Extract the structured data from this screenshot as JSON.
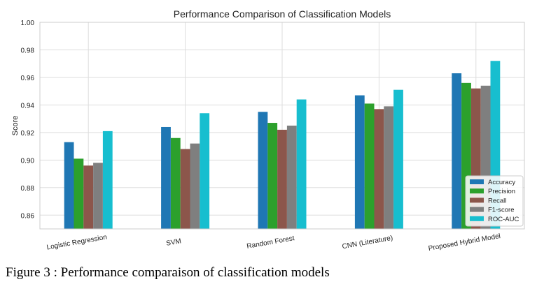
{
  "figure_caption": "Figure 3 : Performance comparaison of classification models",
  "chart_data": {
    "type": "bar",
    "title": "Performance Comparison of Classification Models",
    "xlabel": "",
    "ylabel": "Score",
    "ylim": [
      0.85,
      1.0
    ],
    "yticks": [
      "0.86",
      "0.88",
      "0.90",
      "0.92",
      "0.94",
      "0.96",
      "0.98",
      "1.00"
    ],
    "grid": true,
    "legend_position": "bottom-right",
    "categories": [
      "Logistic Regression",
      "SVM",
      "Random Forest",
      "CNN (Literature)",
      "Proposed Hybrid Model"
    ],
    "series": [
      {
        "name": "Accuracy",
        "color": "#1f77b4",
        "values": [
          0.913,
          0.924,
          0.935,
          0.947,
          0.963
        ]
      },
      {
        "name": "Precision",
        "color": "#2ca02c",
        "values": [
          0.901,
          0.916,
          0.927,
          0.941,
          0.956
        ]
      },
      {
        "name": "Recall",
        "color": "#8c564b",
        "values": [
          0.896,
          0.908,
          0.922,
          0.937,
          0.952
        ]
      },
      {
        "name": "F1-score",
        "color": "#7f7f7f",
        "values": [
          0.898,
          0.912,
          0.925,
          0.939,
          0.954
        ]
      },
      {
        "name": "ROC-AUC",
        "color": "#17becf",
        "values": [
          0.921,
          0.934,
          0.944,
          0.951,
          0.972
        ]
      }
    ]
  }
}
